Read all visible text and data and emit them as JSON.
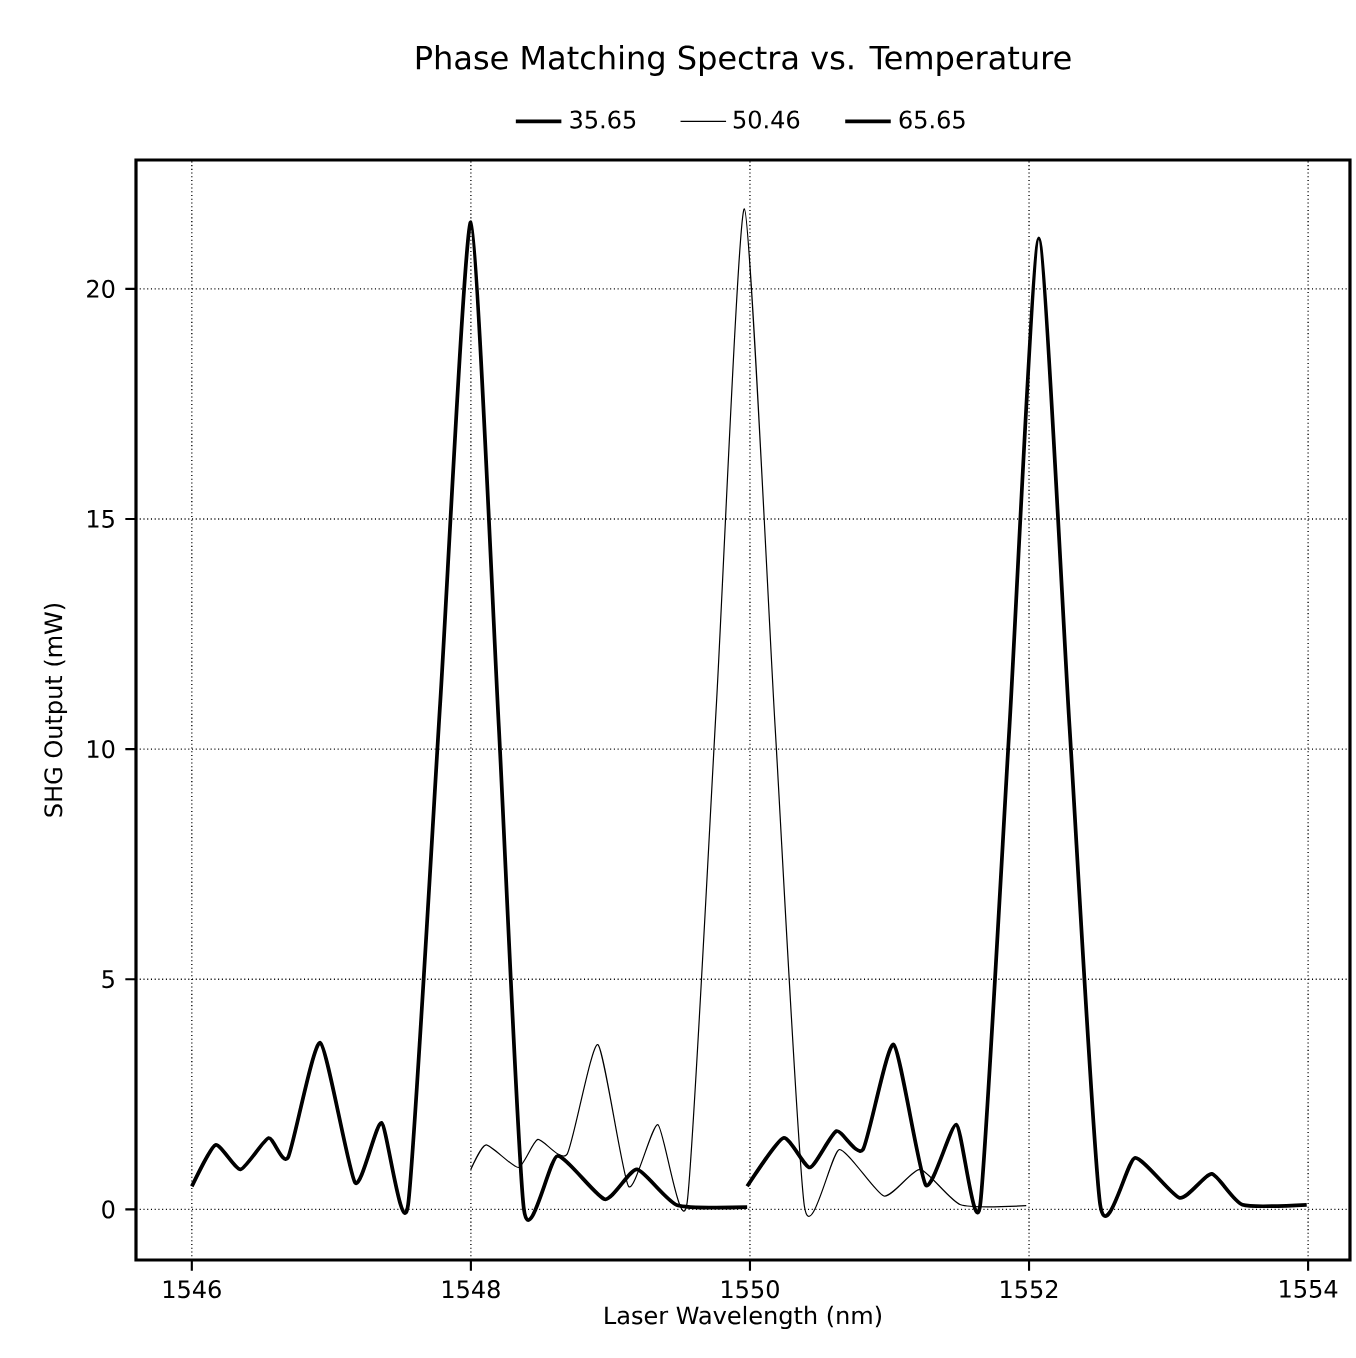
{
  "chart_data": {
    "type": "line",
    "title": "Phase Matching Spectra vs. Temperature",
    "xlabel": "Laser Wavelength (nm)",
    "ylabel": "SHG Output (mW)",
    "xlim": [
      1545.6,
      1554.3
    ],
    "ylim": [
      -1.1,
      22.8
    ],
    "xticks": [
      1546,
      1548,
      1550,
      1552,
      1554
    ],
    "yticks": [
      0,
      5,
      10,
      15,
      20
    ],
    "grid": true,
    "legend": "top",
    "line_style": "solid",
    "marker": "none",
    "series": [
      {
        "name": "35.65",
        "color": "#000000",
        "x": [
          1546.0,
          1546.17,
          1546.35,
          1546.55,
          1546.69,
          1546.92,
          1547.17,
          1547.36,
          1547.55,
          1547.78,
          1548.0,
          1548.2,
          1548.38,
          1548.62,
          1548.96,
          1549.19,
          1549.48,
          1549.98
        ],
        "values": [
          0.5,
          1.4,
          0.87,
          1.55,
          1.13,
          3.62,
          0.58,
          1.88,
          0.1,
          11.0,
          21.45,
          10.5,
          0.0,
          1.16,
          0.22,
          0.87,
          0.09,
          0.05
        ]
      },
      {
        "name": "50.46",
        "color": "#000000",
        "x": [
          1548.0,
          1548.11,
          1548.34,
          1548.48,
          1548.69,
          1548.91,
          1549.13,
          1549.34,
          1549.55,
          1549.76,
          1549.96,
          1550.18,
          1550.39,
          1550.64,
          1550.96,
          1551.22,
          1551.51,
          1551.98
        ],
        "values": [
          0.87,
          1.4,
          0.91,
          1.52,
          1.2,
          3.58,
          0.5,
          1.84,
          0.15,
          11.0,
          21.74,
          10.5,
          0.07,
          1.3,
          0.29,
          0.87,
          0.1,
          0.08
        ]
      },
      {
        "name": "65.65",
        "color": "#000000",
        "x": [
          1549.98,
          1550.24,
          1550.43,
          1550.62,
          1550.81,
          1551.03,
          1551.26,
          1551.48,
          1551.65,
          1551.86,
          1552.07,
          1552.29,
          1552.51,
          1552.76,
          1553.08,
          1553.31,
          1553.53,
          1553.99
        ],
        "values": [
          0.5,
          1.55,
          0.91,
          1.7,
          1.3,
          3.58,
          0.53,
          1.84,
          0.1,
          10.5,
          21.1,
          10.5,
          0.1,
          1.12,
          0.25,
          0.77,
          0.1,
          0.1
        ]
      }
    ]
  }
}
